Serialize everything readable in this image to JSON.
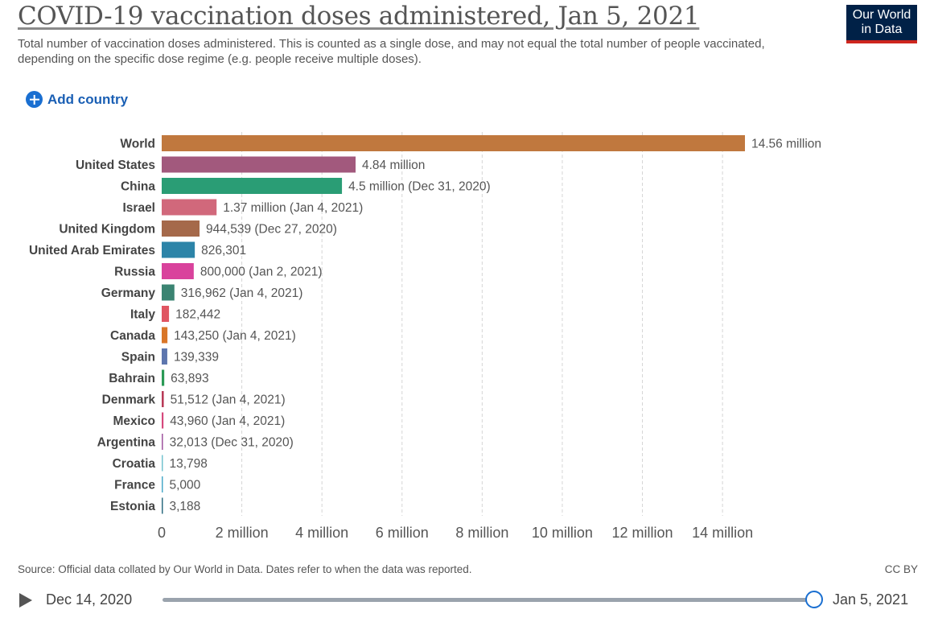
{
  "header": {
    "title": "COVID-19 vaccination doses administered, Jan 5, 2021",
    "subtitle": "Total number of vaccination doses administered. This is counted as a single dose, and may not equal the total number of people vaccinated, depending on the specific dose regime (e.g. people receive multiple doses).",
    "logo_line1": "Our World",
    "logo_line2": "in Data"
  },
  "controls": {
    "add_country_label": "Add country"
  },
  "chart_data": {
    "type": "bar",
    "orientation": "horizontal",
    "categories": [
      "World",
      "United States",
      "China",
      "Israel",
      "United Kingdom",
      "United Arab Emirates",
      "Russia",
      "Germany",
      "Italy",
      "Canada",
      "Spain",
      "Bahrain",
      "Denmark",
      "Mexico",
      "Argentina",
      "Croatia",
      "France",
      "Estonia"
    ],
    "values": [
      14560000,
      4840000,
      4500000,
      1370000,
      944539,
      826301,
      800000,
      316962,
      182442,
      143250,
      139339,
      63893,
      51512,
      43960,
      32013,
      13798,
      5000,
      3188
    ],
    "value_labels": [
      "14.56 million",
      "4.84 million",
      "4.5 million (Dec 31, 2020)",
      "1.37 million (Jan 4, 2021)",
      "944,539 (Dec 27, 2020)",
      "826,301",
      "800,000 (Jan 2, 2021)",
      "316,962 (Jan 4, 2021)",
      "182,442",
      "143,250 (Jan 4, 2021)",
      "139,339",
      "63,893",
      "51,512 (Jan 4, 2021)",
      "43,960 (Jan 4, 2021)",
      "32,013 (Dec 31, 2020)",
      "13,798",
      "5,000",
      "3,188"
    ],
    "colors": [
      "#c0783e",
      "#a2597d",
      "#2a9d75",
      "#d1687b",
      "#a5694a",
      "#2c84a8",
      "#d9429c",
      "#3b8472",
      "#e05561",
      "#d97628",
      "#5d76ae",
      "#2a9a56",
      "#b83a57",
      "#d6487c",
      "#a35ca3",
      "#73c3cf",
      "#4aa9c9",
      "#2d6c80"
    ],
    "xticks": [
      0,
      2000000,
      4000000,
      6000000,
      8000000,
      10000000,
      12000000,
      14000000
    ],
    "xtick_labels": [
      "0",
      "2 million",
      "4 million",
      "6 million",
      "8 million",
      "10 million",
      "12 million",
      "14 million"
    ],
    "xlim": [
      0,
      14560000
    ],
    "grid": "vertical dashed"
  },
  "footer": {
    "source": "Source: Official data collated by Our World in Data. Dates refer to when the data was reported.",
    "license": "CC BY"
  },
  "timeline": {
    "start_label": "Dec 14, 2020",
    "end_label": "Jan 5, 2021",
    "position": 1.0
  }
}
